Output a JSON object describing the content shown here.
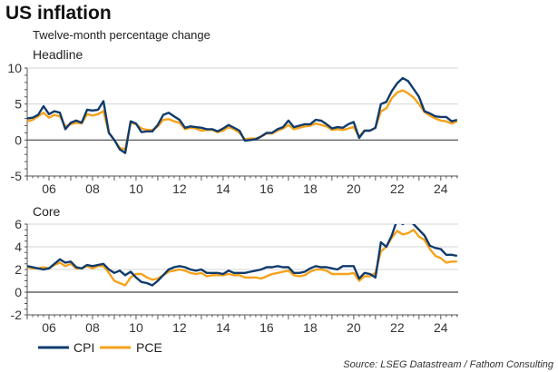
{
  "title": "US inflation",
  "subtitle": "Twelve-month percentage change",
  "source": "Source: LSEG Datastream / Fathom Consulting",
  "colors": {
    "cpi": "#103b6c",
    "pce": "#f5a21b"
  },
  "legend": [
    {
      "name": "CPI",
      "key": "cpi"
    },
    {
      "name": "PCE",
      "key": "pce"
    }
  ],
  "chart_data": [
    {
      "type": "line",
      "title": "Headline",
      "x_start": 2005.0,
      "x_step": 0.25,
      "xlim": [
        2005.0,
        2024.8
      ],
      "x_tick_labels": [
        "06",
        "08",
        "10",
        "12",
        "14",
        "16",
        "18",
        "20",
        "22",
        "24"
      ],
      "x_tick_years": [
        2006,
        2008,
        2010,
        2012,
        2014,
        2016,
        2018,
        2020,
        2022,
        2024
      ],
      "ylim": [
        -5,
        10
      ],
      "y_ticks": [
        -5,
        0,
        5,
        10
      ],
      "grid": true,
      "legend": "bottom-left",
      "series": [
        {
          "name": "CPI",
          "key": "cpi",
          "values": [
            3.0,
            3.1,
            3.5,
            4.7,
            3.6,
            4.0,
            3.8,
            1.5,
            2.4,
            2.7,
            2.4,
            4.2,
            4.1,
            4.2,
            5.4,
            1.0,
            0.0,
            -1.3,
            -1.8,
            2.6,
            2.3,
            1.1,
            1.2,
            1.2,
            2.1,
            3.5,
            3.8,
            3.3,
            2.8,
            1.7,
            1.9,
            1.8,
            1.7,
            1.5,
            1.5,
            1.2,
            1.6,
            2.1,
            1.7,
            1.3,
            -0.1,
            0.0,
            0.1,
            0.5,
            1.0,
            1.0,
            1.5,
            1.8,
            2.7,
            1.8,
            2.0,
            2.2,
            2.2,
            2.8,
            2.7,
            2.2,
            1.6,
            1.8,
            1.7,
            2.2,
            2.5,
            0.3,
            1.3,
            1.3,
            1.7,
            5.0,
            5.3,
            6.8,
            7.9,
            8.6,
            8.2,
            7.1,
            6.0,
            4.0,
            3.7,
            3.3,
            3.2,
            3.2,
            2.6,
            2.8
          ]
        },
        {
          "name": "PCE",
          "key": "pce",
          "values": [
            2.6,
            2.8,
            3.3,
            3.8,
            3.1,
            3.5,
            3.3,
            1.9,
            2.2,
            2.4,
            2.3,
            3.6,
            3.4,
            3.6,
            4.0,
            1.0,
            0.0,
            -1.1,
            -1.3,
            2.4,
            2.2,
            1.6,
            1.4,
            1.4,
            1.9,
            2.8,
            2.9,
            2.6,
            2.4,
            1.5,
            1.7,
            1.6,
            1.3,
            1.4,
            1.4,
            1.1,
            1.3,
            1.8,
            1.5,
            1.0,
            0.1,
            0.2,
            0.2,
            0.5,
            0.9,
            0.9,
            1.3,
            1.6,
            2.1,
            1.5,
            1.7,
            1.9,
            2.0,
            2.3,
            2.1,
            1.9,
            1.4,
            1.5,
            1.4,
            1.6,
            1.8,
            0.5,
            1.3,
            1.3,
            1.7,
            4.0,
            4.4,
            5.8,
            6.6,
            6.9,
            6.5,
            5.9,
            5.0,
            3.9,
            3.4,
            3.0,
            2.7,
            2.6,
            2.3,
            2.6
          ]
        }
      ]
    },
    {
      "type": "line",
      "title": "Core",
      "x_start": 2005.0,
      "x_step": 0.25,
      "xlim": [
        2005.0,
        2024.8
      ],
      "x_tick_labels": [
        "06",
        "08",
        "10",
        "12",
        "14",
        "16",
        "18",
        "20",
        "22",
        "24"
      ],
      "x_tick_years": [
        2006,
        2008,
        2010,
        2012,
        2014,
        2016,
        2018,
        2020,
        2022,
        2024
      ],
      "ylim": [
        -2,
        6
      ],
      "y_ticks": [
        -2,
        0,
        2,
        4,
        6
      ],
      "grid": true,
      "legend": "bottom-left",
      "series": [
        {
          "name": "CPI",
          "key": "cpi",
          "values": [
            2.3,
            2.2,
            2.1,
            2.0,
            2.1,
            2.5,
            2.9,
            2.6,
            2.7,
            2.2,
            2.1,
            2.4,
            2.3,
            2.4,
            2.5,
            2.0,
            1.7,
            1.9,
            1.5,
            1.8,
            1.3,
            0.9,
            0.8,
            0.6,
            1.0,
            1.5,
            2.0,
            2.2,
            2.3,
            2.2,
            2.0,
            1.9,
            2.0,
            1.7,
            1.7,
            1.7,
            1.6,
            1.9,
            1.7,
            1.7,
            1.7,
            1.8,
            1.9,
            2.0,
            2.2,
            2.2,
            2.3,
            2.2,
            2.2,
            1.7,
            1.7,
            1.8,
            2.1,
            2.3,
            2.2,
            2.2,
            2.1,
            2.0,
            2.3,
            2.3,
            2.3,
            1.2,
            1.7,
            1.6,
            1.3,
            4.4,
            4.0,
            5.0,
            6.4,
            6.0,
            6.3,
            6.0,
            5.5,
            5.0,
            4.1,
            3.9,
            3.8,
            3.3,
            3.3,
            3.2
          ]
        },
        {
          "name": "PCE",
          "key": "pce",
          "values": [
            2.2,
            2.1,
            2.1,
            2.2,
            2.1,
            2.4,
            2.6,
            2.3,
            2.5,
            2.1,
            2.1,
            2.3,
            2.1,
            2.3,
            2.3,
            1.7,
            1.0,
            0.8,
            0.6,
            1.3,
            1.6,
            1.6,
            1.3,
            1.1,
            1.2,
            1.5,
            1.8,
            1.9,
            2.0,
            1.9,
            1.7,
            1.6,
            1.7,
            1.4,
            1.5,
            1.5,
            1.5,
            1.6,
            1.5,
            1.5,
            1.3,
            1.3,
            1.3,
            1.2,
            1.4,
            1.6,
            1.7,
            1.8,
            1.9,
            1.5,
            1.4,
            1.5,
            1.8,
            2.0,
            2.0,
            1.9,
            1.6,
            1.6,
            1.6,
            1.6,
            1.7,
            1.0,
            1.4,
            1.4,
            1.7,
            3.6,
            4.0,
            4.8,
            5.4,
            5.1,
            5.2,
            5.5,
            4.9,
            4.6,
            3.8,
            3.2,
            3.0,
            2.6,
            2.7,
            2.7
          ]
        }
      ]
    }
  ]
}
